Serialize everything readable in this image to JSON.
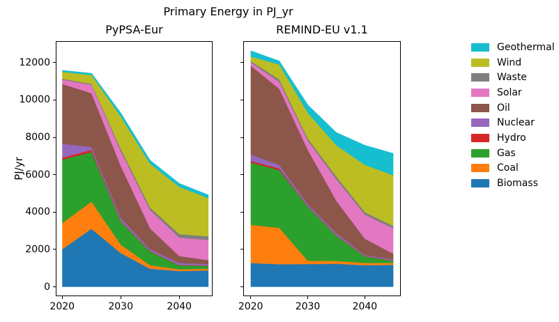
{
  "suptitle": "Primary Energy in PJ_yr",
  "ylabel": "PJ/yr",
  "legend": {
    "entries": [
      {
        "label": "Geothermal",
        "color": "#17becf"
      },
      {
        "label": "Wind",
        "color": "#bcbd22"
      },
      {
        "label": "Waste",
        "color": "#7f7f7f"
      },
      {
        "label": "Solar",
        "color": "#e377c2"
      },
      {
        "label": "Oil",
        "color": "#8c564b"
      },
      {
        "label": "Nuclear",
        "color": "#9467bd"
      },
      {
        "label": "Hydro",
        "color": "#d62728"
      },
      {
        "label": "Gas",
        "color": "#2ca02c"
      },
      {
        "label": "Coal",
        "color": "#ff7f0e"
      },
      {
        "label": "Biomass",
        "color": "#1f77b4"
      }
    ]
  },
  "chart_data": [
    {
      "type": "area",
      "stacked": true,
      "title": "PyPSA-Eur",
      "ylabel": "PJ/yr",
      "x": [
        2020,
        2025,
        2030,
        2035,
        2040,
        2045
      ],
      "xlim": [
        2018.9,
        2045.7
      ],
      "ylim": [
        -500,
        13150
      ],
      "xticks": [
        2020,
        2030,
        2040
      ],
      "xtick_labels": [
        "2020",
        "2030",
        "2040"
      ],
      "yticks": [
        0,
        2000,
        4000,
        6000,
        8000,
        10000,
        12000
      ],
      "ytick_labels": [
        "0",
        "2000",
        "4000",
        "6000",
        "8000",
        "10000",
        "12000"
      ],
      "grid": false,
      "series": [
        {
          "name": "Biomass",
          "color": "#1f77b4",
          "values": [
            2000,
            3100,
            1800,
            960,
            840,
            870
          ]
        },
        {
          "name": "Coal",
          "color": "#ff7f0e",
          "values": [
            1400,
            1450,
            450,
            190,
            90,
            90
          ]
        },
        {
          "name": "Gas",
          "color": "#2ca02c",
          "values": [
            3400,
            2650,
            1250,
            740,
            220,
            160
          ]
        },
        {
          "name": "Hydro",
          "color": "#d62728",
          "values": [
            100,
            120,
            20,
            25,
            15,
            15
          ]
        },
        {
          "name": "Nuclear",
          "color": "#9467bd",
          "values": [
            750,
            160,
            160,
            100,
            105,
            75
          ]
        },
        {
          "name": "Oil",
          "color": "#8c564b",
          "values": [
            3200,
            2870,
            2780,
            1110,
            370,
            210
          ]
        },
        {
          "name": "Solar",
          "color": "#e377c2",
          "values": [
            230,
            450,
            800,
            990,
            990,
            1080
          ]
        },
        {
          "name": "Waste",
          "color": "#7f7f7f",
          "values": [
            50,
            50,
            120,
            125,
            185,
            190
          ]
        },
        {
          "name": "Wind",
          "color": "#bcbd22",
          "values": [
            370,
            480,
            1730,
            2345,
            2530,
            2040
          ]
        },
        {
          "name": "Geothermal",
          "color": "#17becf",
          "values": [
            80,
            90,
            190,
            185,
            185,
            180
          ]
        }
      ]
    },
    {
      "type": "area",
      "stacked": true,
      "title": "REMIND-EU v1.1",
      "ylabel": "",
      "x": [
        2020,
        2025,
        2030,
        2035,
        2040,
        2045
      ],
      "xlim": [
        2018.7,
        2046.3
      ],
      "ylim": [
        -500,
        13150
      ],
      "xticks": [
        2020,
        2030,
        2040
      ],
      "xtick_labels": [
        "2020",
        "2030",
        "2040"
      ],
      "yticks": [
        0,
        2000,
        4000,
        6000,
        8000,
        10000,
        12000
      ],
      "ytick_labels": [],
      "grid": false,
      "series": [
        {
          "name": "Biomass",
          "color": "#1f77b4",
          "values": [
            1270,
            1200,
            1210,
            1230,
            1150,
            1170
          ]
        },
        {
          "name": "Coal",
          "color": "#ff7f0e",
          "values": [
            2040,
            1950,
            180,
            150,
            120,
            100
          ]
        },
        {
          "name": "Gas",
          "color": "#2ca02c",
          "values": [
            3330,
            3090,
            2910,
            1370,
            370,
            120
          ]
        },
        {
          "name": "Hydro",
          "color": "#d62728",
          "values": [
            90,
            90,
            10,
            10,
            5,
            5
          ]
        },
        {
          "name": "Nuclear",
          "color": "#9467bd",
          "values": [
            350,
            190,
            110,
            110,
            55,
            65
          ]
        },
        {
          "name": "Oil",
          "color": "#8c564b",
          "values": [
            4750,
            4070,
            2900,
            1730,
            870,
            300
          ]
        },
        {
          "name": "Solar",
          "color": "#e377c2",
          "values": [
            180,
            370,
            500,
            1150,
            1290,
            1360
          ]
        },
        {
          "name": "Waste",
          "color": "#7f7f7f",
          "values": [
            70,
            130,
            120,
            150,
            130,
            130
          ]
        },
        {
          "name": "Wind",
          "color": "#bcbd22",
          "values": [
            240,
            800,
            1360,
            1670,
            2530,
            2710
          ]
        },
        {
          "name": "Geothermal",
          "color": "#17becf",
          "values": [
            310,
            190,
            430,
            680,
            1050,
            1170
          ]
        }
      ]
    }
  ]
}
